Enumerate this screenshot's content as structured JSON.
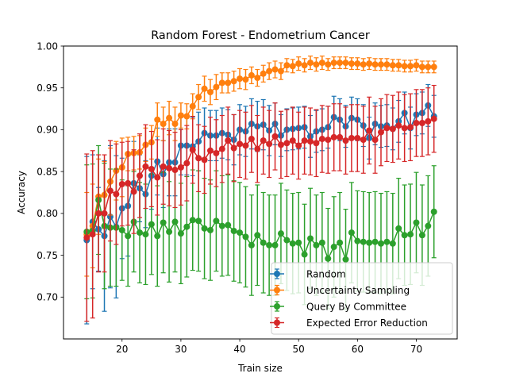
{
  "chart_data": {
    "type": "line",
    "title": "Random Forest - Endometrium Cancer",
    "xlabel": "Train size",
    "ylabel": "Accuracy",
    "xlim": [
      10.05,
      76.95
    ],
    "ylim": [
      0.65,
      1.0
    ],
    "xticks": [
      20,
      30,
      40,
      50,
      60,
      70
    ],
    "yticks": [
      0.7,
      0.75,
      0.8,
      0.85,
      0.9,
      0.95,
      1.0
    ],
    "xtick_labels": [
      "20",
      "30",
      "40",
      "50",
      "60",
      "70"
    ],
    "ytick_labels": [
      "0.70",
      "0.75",
      "0.80",
      "0.85",
      "0.90",
      "0.95",
      "1.00"
    ],
    "grid": false,
    "legend_position": "lower-right",
    "x": [
      14,
      15,
      16,
      17,
      18,
      19,
      20,
      21,
      22,
      23,
      24,
      25,
      26,
      27,
      28,
      29,
      30,
      31,
      32,
      33,
      34,
      35,
      36,
      37,
      38,
      39,
      40,
      41,
      42,
      43,
      44,
      45,
      46,
      47,
      48,
      49,
      50,
      51,
      52,
      53,
      54,
      55,
      56,
      57,
      58,
      59,
      60,
      61,
      62,
      63,
      64,
      65,
      66,
      67,
      68,
      69,
      70,
      71,
      72,
      73
    ],
    "series": [
      {
        "name": "Random",
        "color": "#1f77b4",
        "values": [
          0.768,
          0.79,
          0.781,
          0.773,
          0.796,
          0.784,
          0.806,
          0.809,
          0.836,
          0.83,
          0.823,
          0.845,
          0.862,
          0.847,
          0.861,
          0.861,
          0.881,
          0.881,
          0.88,
          0.886,
          0.896,
          0.893,
          0.893,
          0.896,
          0.894,
          0.888,
          0.9,
          0.898,
          0.907,
          0.904,
          0.906,
          0.899,
          0.907,
          0.893,
          0.9,
          0.901,
          0.902,
          0.903,
          0.892,
          0.898,
          0.9,
          0.903,
          0.915,
          0.912,
          0.904,
          0.914,
          0.912,
          0.905,
          0.89,
          0.907,
          0.904,
          0.905,
          0.901,
          0.91,
          0.92,
          0.902,
          0.918,
          0.92,
          0.929,
          0.916
        ],
        "errors": [
          0.1,
          0.08,
          0.05,
          0.09,
          0.085,
          0.085,
          0.06,
          0.06,
          0.05,
          0.04,
          0.04,
          0.04,
          0.04,
          0.04,
          0.04,
          0.04,
          0.035,
          0.035,
          0.035,
          0.035,
          0.03,
          0.03,
          0.03,
          0.03,
          0.03,
          0.03,
          0.03,
          0.03,
          0.03,
          0.03,
          0.03,
          0.03,
          0.025,
          0.025,
          0.025,
          0.025,
          0.025,
          0.025,
          0.025,
          0.025,
          0.025,
          0.025,
          0.025,
          0.025,
          0.025,
          0.025,
          0.025,
          0.025,
          0.025,
          0.025,
          0.025,
          0.025,
          0.025,
          0.025,
          0.025,
          0.025,
          0.025,
          0.025,
          0.025,
          0.025
        ]
      },
      {
        "name": "Uncertainty Sampling",
        "color": "#ff7f0e",
        "values": [
          0.775,
          0.785,
          0.82,
          0.822,
          0.838,
          0.851,
          0.855,
          0.871,
          0.872,
          0.873,
          0.882,
          0.885,
          0.912,
          0.907,
          0.914,
          0.907,
          0.917,
          0.916,
          0.928,
          0.939,
          0.949,
          0.945,
          0.951,
          0.956,
          0.956,
          0.958,
          0.961,
          0.96,
          0.965,
          0.962,
          0.967,
          0.97,
          0.972,
          0.97,
          0.977,
          0.976,
          0.979,
          0.977,
          0.98,
          0.978,
          0.98,
          0.978,
          0.98,
          0.98,
          0.98,
          0.979,
          0.979,
          0.978,
          0.979,
          0.978,
          0.978,
          0.978,
          0.977,
          0.977,
          0.976,
          0.976,
          0.977,
          0.975,
          0.975,
          0.975
        ],
        "errors": [
          0.05,
          0.05,
          0.045,
          0.04,
          0.04,
          0.035,
          0.035,
          0.02,
          0.02,
          0.02,
          0.02,
          0.02,
          0.02,
          0.02,
          0.02,
          0.02,
          0.015,
          0.015,
          0.015,
          0.015,
          0.015,
          0.015,
          0.015,
          0.012,
          0.012,
          0.012,
          0.012,
          0.012,
          0.01,
          0.01,
          0.01,
          0.01,
          0.01,
          0.01,
          0.008,
          0.008,
          0.008,
          0.008,
          0.008,
          0.008,
          0.008,
          0.007,
          0.007,
          0.007,
          0.007,
          0.007,
          0.007,
          0.007,
          0.007,
          0.007,
          0.007,
          0.007,
          0.007,
          0.007,
          0.007,
          0.007,
          0.007,
          0.007,
          0.007,
          0.007
        ]
      },
      {
        "name": "Query By Committee",
        "color": "#2ca02c",
        "values": [
          0.778,
          0.779,
          0.816,
          0.785,
          0.783,
          0.783,
          0.78,
          0.773,
          0.79,
          0.777,
          0.775,
          0.787,
          0.773,
          0.789,
          0.778,
          0.79,
          0.776,
          0.784,
          0.792,
          0.791,
          0.782,
          0.78,
          0.791,
          0.785,
          0.786,
          0.779,
          0.777,
          0.772,
          0.762,
          0.774,
          0.765,
          0.762,
          0.762,
          0.776,
          0.768,
          0.764,
          0.765,
          0.751,
          0.77,
          0.762,
          0.765,
          0.746,
          0.76,
          0.765,
          0.745,
          0.777,
          0.767,
          0.766,
          0.765,
          0.766,
          0.764,
          0.766,
          0.764,
          0.782,
          0.774,
          0.775,
          0.789,
          0.774,
          0.785,
          0.802
        ],
        "errors": [
          0.08,
          0.08,
          0.065,
          0.075,
          0.07,
          0.07,
          0.06,
          0.06,
          0.06,
          0.06,
          0.06,
          0.06,
          0.06,
          0.06,
          0.06,
          0.06,
          0.06,
          0.06,
          0.06,
          0.06,
          0.06,
          0.06,
          0.06,
          0.06,
          0.06,
          0.06,
          0.06,
          0.06,
          0.06,
          0.06,
          0.06,
          0.06,
          0.06,
          0.06,
          0.06,
          0.06,
          0.06,
          0.06,
          0.06,
          0.06,
          0.06,
          0.06,
          0.06,
          0.06,
          0.06,
          0.06,
          0.06,
          0.06,
          0.06,
          0.06,
          0.06,
          0.06,
          0.06,
          0.06,
          0.06,
          0.06,
          0.06,
          0.06,
          0.06,
          0.055
        ]
      },
      {
        "name": "Expected Error Reduction",
        "color": "#d62728",
        "values": [
          0.771,
          0.775,
          0.8,
          0.8,
          0.827,
          0.823,
          0.835,
          0.836,
          0.826,
          0.845,
          0.856,
          0.853,
          0.843,
          0.856,
          0.854,
          0.852,
          0.855,
          0.86,
          0.876,
          0.866,
          0.864,
          0.875,
          0.872,
          0.877,
          0.887,
          0.878,
          0.883,
          0.881,
          0.889,
          0.877,
          0.887,
          0.883,
          0.892,
          0.882,
          0.884,
          0.887,
          0.881,
          0.887,
          0.886,
          0.884,
          0.889,
          0.888,
          0.891,
          0.891,
          0.887,
          0.89,
          0.89,
          0.888,
          0.899,
          0.888,
          0.897,
          0.902,
          0.901,
          0.905,
          0.902,
          0.903,
          0.908,
          0.908,
          0.91,
          0.913
        ],
        "errors": [
          0.1,
          0.1,
          0.07,
          0.07,
          0.06,
          0.06,
          0.05,
          0.05,
          0.05,
          0.05,
          0.05,
          0.045,
          0.045,
          0.045,
          0.045,
          0.045,
          0.045,
          0.045,
          0.04,
          0.04,
          0.04,
          0.04,
          0.04,
          0.04,
          0.04,
          0.04,
          0.04,
          0.04,
          0.04,
          0.04,
          0.04,
          0.04,
          0.04,
          0.04,
          0.04,
          0.04,
          0.04,
          0.04,
          0.04,
          0.04,
          0.04,
          0.04,
          0.04,
          0.04,
          0.04,
          0.04,
          0.04,
          0.04,
          0.04,
          0.04,
          0.04,
          0.04,
          0.04,
          0.04,
          0.04,
          0.04,
          0.04,
          0.04,
          0.04,
          0.04
        ]
      }
    ]
  }
}
